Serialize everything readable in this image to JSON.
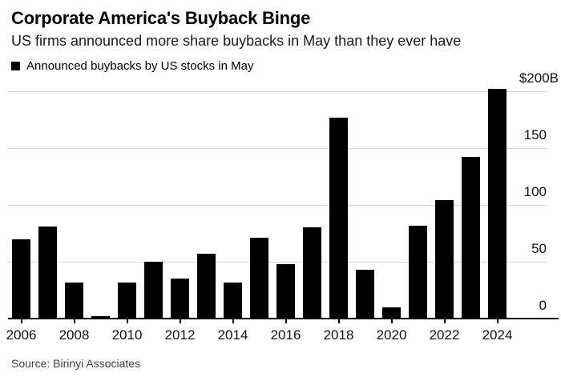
{
  "header": {
    "title": "Corporate America's Buyback Binge",
    "subtitle": "US firms announced more share buybacks in May than they ever have"
  },
  "legend": {
    "label": "Announced buybacks by US stocks in May",
    "marker_color": "#000000"
  },
  "chart_data": {
    "type": "bar",
    "title": "Corporate America's Buyback Binge",
    "subtitle": "US firms announced more share buybacks in May than they ever have",
    "series_name": "Announced buybacks by US stocks in May",
    "categories": [
      "2006",
      "2007",
      "2008",
      "2009",
      "2010",
      "2011",
      "2012",
      "2013",
      "2014",
      "2015",
      "2016",
      "2017",
      "2018",
      "2019",
      "2020",
      "2021",
      "2022",
      "2023",
      "2024"
    ],
    "values": [
      70,
      81,
      32,
      2,
      32,
      50,
      35,
      57,
      32,
      71,
      48,
      80,
      177,
      43,
      10,
      82,
      104,
      142,
      202
    ],
    "unit": "USD billions",
    "xlabel": "",
    "ylabel": "",
    "ylim": [
      0,
      200
    ],
    "y_ticks": [
      {
        "value": 200,
        "label": "$200B"
      },
      {
        "value": 150,
        "label": "150"
      },
      {
        "value": 100,
        "label": "100"
      },
      {
        "value": 50,
        "label": "50"
      },
      {
        "value": 0,
        "label": "0"
      }
    ],
    "x_tick_labels": [
      "2006",
      "2008",
      "2010",
      "2012",
      "2014",
      "2016",
      "2018",
      "2020",
      "2022",
      "2024"
    ],
    "grid": "horizontal",
    "legend_position": "top-left",
    "y_axis_side": "right",
    "bar_color": "#000000"
  },
  "source": {
    "text": "Source: Birinyi Associates"
  },
  "colors": {
    "background": "#ffffff",
    "bar": "#000000",
    "gridline": "#d8d8d8",
    "axis_line": "#000000",
    "source_text": "#3f3f3f"
  }
}
